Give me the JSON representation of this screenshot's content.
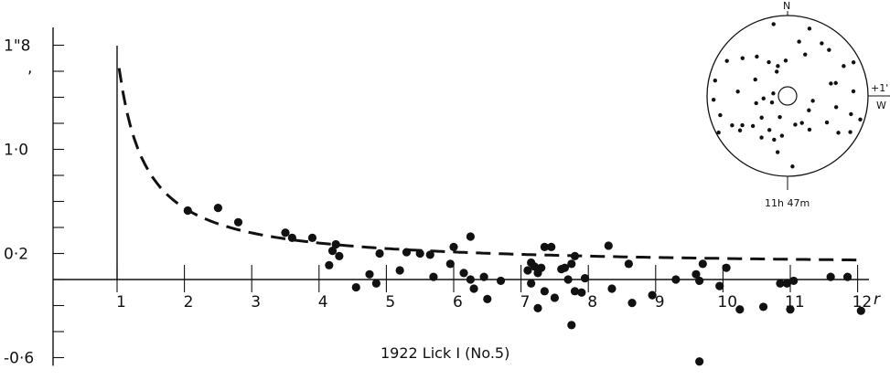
{
  "chart_data": [
    {
      "type": "scatter",
      "caption": "1922 Lick I (No.5)",
      "xlabel": "r",
      "x_ticks": [
        "1",
        "2",
        "3",
        "4",
        "5",
        "6",
        "7",
        "8",
        "9",
        "10",
        "11",
        "12"
      ],
      "y_ticks": [
        {
          "value": 1.8,
          "label": "1\"8"
        },
        {
          "value": 1.0,
          "label": "1·0"
        },
        {
          "value": 0.2,
          "label": "0·2"
        },
        {
          "value": -0.6,
          "label": "-0·6"
        }
      ],
      "xlim": [
        1,
        12.3
      ],
      "ylim": [
        -0.62,
        1.85
      ],
      "grid": false,
      "points": [
        {
          "x": 2.05,
          "y": 0.53
        },
        {
          "x": 2.5,
          "y": 0.55
        },
        {
          "x": 2.8,
          "y": 0.44
        },
        {
          "x": 3.5,
          "y": 0.36
        },
        {
          "x": 3.6,
          "y": 0.32
        },
        {
          "x": 3.9,
          "y": 0.32
        },
        {
          "x": 4.2,
          "y": 0.22
        },
        {
          "x": 4.25,
          "y": 0.27
        },
        {
          "x": 4.15,
          "y": 0.11
        },
        {
          "x": 4.3,
          "y": 0.18
        },
        {
          "x": 4.55,
          "y": -0.06
        },
        {
          "x": 4.75,
          "y": 0.04
        },
        {
          "x": 4.85,
          "y": -0.03
        },
        {
          "x": 4.9,
          "y": 0.2
        },
        {
          "x": 5.2,
          "y": 0.07
        },
        {
          "x": 5.3,
          "y": 0.21
        },
        {
          "x": 5.5,
          "y": 0.2
        },
        {
          "x": 5.65,
          "y": 0.19
        },
        {
          "x": 5.7,
          "y": 0.02
        },
        {
          "x": 5.95,
          "y": 0.12
        },
        {
          "x": 6.0,
          "y": 0.25
        },
        {
          "x": 6.15,
          "y": 0.05
        },
        {
          "x": 6.25,
          "y": 0.0
        },
        {
          "x": 6.3,
          "y": -0.07
        },
        {
          "x": 6.25,
          "y": 0.33
        },
        {
          "x": 6.5,
          "y": -0.15
        },
        {
          "x": 6.45,
          "y": 0.02
        },
        {
          "x": 6.7,
          "y": -0.01
        },
        {
          "x": 7.1,
          "y": 0.07
        },
        {
          "x": 7.15,
          "y": -0.03
        },
        {
          "x": 7.15,
          "y": 0.13
        },
        {
          "x": 7.3,
          "y": 0.09
        },
        {
          "x": 7.2,
          "y": 0.1
        },
        {
          "x": 7.35,
          "y": 0.25
        },
        {
          "x": 7.25,
          "y": 0.05
        },
        {
          "x": 7.25,
          "y": -0.22
        },
        {
          "x": 7.35,
          "y": -0.09
        },
        {
          "x": 7.5,
          "y": -0.14
        },
        {
          "x": 7.45,
          "y": 0.25
        },
        {
          "x": 7.6,
          "y": 0.08
        },
        {
          "x": 7.7,
          "y": 0.0
        },
        {
          "x": 7.65,
          "y": 0.09
        },
        {
          "x": 7.8,
          "y": 0.18
        },
        {
          "x": 7.75,
          "y": 0.12
        },
        {
          "x": 7.8,
          "y": -0.09
        },
        {
          "x": 7.75,
          "y": -0.35
        },
        {
          "x": 7.9,
          "y": -0.1
        },
        {
          "x": 7.95,
          "y": 0.01
        },
        {
          "x": 8.3,
          "y": 0.26
        },
        {
          "x": 8.35,
          "y": -0.07
        },
        {
          "x": 8.6,
          "y": 0.12
        },
        {
          "x": 8.65,
          "y": -0.18
        },
        {
          "x": 8.95,
          "y": -0.12
        },
        {
          "x": 9.3,
          "y": 0.0
        },
        {
          "x": 9.6,
          "y": 0.04
        },
        {
          "x": 9.65,
          "y": -0.01
        },
        {
          "x": 9.7,
          "y": 0.12
        },
        {
          "x": 9.95,
          "y": -0.05
        },
        {
          "x": 10.05,
          "y": 0.09
        },
        {
          "x": 10.25,
          "y": -0.23
        },
        {
          "x": 10.6,
          "y": -0.21
        },
        {
          "x": 10.85,
          "y": -0.03
        },
        {
          "x": 10.95,
          "y": -0.03
        },
        {
          "x": 11.0,
          "y": -0.23
        },
        {
          "x": 11.05,
          "y": -0.01
        },
        {
          "x": 11.6,
          "y": 0.02
        },
        {
          "x": 11.85,
          "y": 0.02
        },
        {
          "x": 12.05,
          "y": -0.24
        },
        {
          "x": 9.65,
          "y": -0.63
        }
      ],
      "fit_curve": {
        "style": "dashed",
        "x_range": [
          1.03,
          12.05
        ],
        "y_start": 1.7,
        "y_end": 0.14
      }
    },
    {
      "type": "scatter",
      "inset": "polar",
      "labels": {
        "north": "N",
        "west": "W",
        "east_mark": "+1'",
        "time": "11h 47m"
      },
      "points_polar": [
        {
          "r": 0.88,
          "deg": 18
        },
        {
          "r": 0.91,
          "deg": -11
        },
        {
          "r": 0.78,
          "deg": 33
        },
        {
          "r": 0.77,
          "deg": 42
        },
        {
          "r": 0.56,
          "deg": 23
        },
        {
          "r": 0.69,
          "deg": 12
        },
        {
          "r": 0.48,
          "deg": -29
        },
        {
          "r": 0.39,
          "deg": -18
        },
        {
          "r": 0.62,
          "deg": -38
        },
        {
          "r": 0.73,
          "deg": -50
        },
        {
          "r": 0.87,
          "deg": -60
        },
        {
          "r": 0.92,
          "deg": -78
        },
        {
          "r": 0.92,
          "deg": -93
        },
        {
          "r": 0.87,
          "deg": -106
        },
        {
          "r": 0.97,
          "deg": -118
        },
        {
          "r": 0.78,
          "deg": -118
        },
        {
          "r": 0.67,
          "deg": -123
        },
        {
          "r": 0.57,
          "deg": -131
        },
        {
          "r": 0.4,
          "deg": -103
        },
        {
          "r": 0.45,
          "deg": -63
        },
        {
          "r": 0.33,
          "deg": -24
        },
        {
          "r": 0.18,
          "deg": -80
        },
        {
          "r": 0.3,
          "deg": -96
        },
        {
          "r": 0.28,
          "deg": -160
        },
        {
          "r": 0.48,
          "deg": -152
        },
        {
          "r": 0.61,
          "deg": -148
        },
        {
          "r": 0.57,
          "deg": -163
        },
        {
          "r": 0.71,
          "deg": -170
        },
        {
          "r": 0.88,
          "deg": 176
        },
        {
          "r": 0.37,
          "deg": 165
        },
        {
          "r": 0.5,
          "deg": 147
        },
        {
          "r": 0.32,
          "deg": 124
        },
        {
          "r": 0.59,
          "deg": 124
        },
        {
          "r": 0.78,
          "deg": 126
        },
        {
          "r": 0.95,
          "deg": 108
        },
        {
          "r": 0.9,
          "deg": 120
        },
        {
          "r": 0.82,
          "deg": 106
        },
        {
          "r": 0.62,
          "deg": 103
        },
        {
          "r": 0.62,
          "deg": 75
        },
        {
          "r": 0.82,
          "deg": 86
        },
        {
          "r": 0.79,
          "deg": 62
        },
        {
          "r": 0.44,
          "deg": -3
        },
        {
          "r": 0.5,
          "deg": -172
        },
        {
          "r": 0.42,
          "deg": -130
        },
        {
          "r": 0.73,
          "deg": -126
        },
        {
          "r": 0.56,
          "deg": 74
        },
        {
          "r": 0.92,
          "deg": 63
        },
        {
          "r": 0.32,
          "deg": 101
        },
        {
          "r": 0.62,
          "deg": -85
        },
        {
          "r": 0.21,
          "deg": -113
        },
        {
          "r": 0.38,
          "deg": 152
        }
      ]
    }
  ]
}
